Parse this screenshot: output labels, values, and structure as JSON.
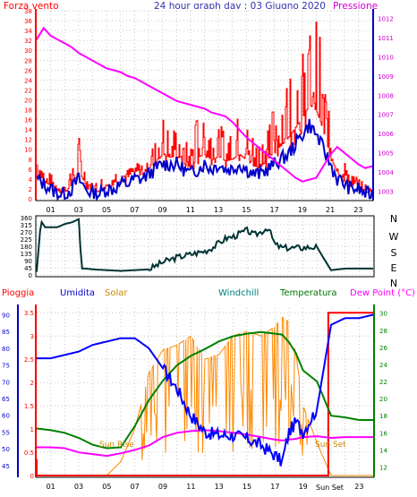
{
  "header": {
    "left_label": "Forza vento",
    "center_title": "24 hour graph day : 03 Giugno 2020",
    "right_label": "Pressione"
  },
  "direction_letters": [
    "N",
    "W",
    "S",
    "E",
    "N"
  ],
  "legend_bottom": {
    "pioggia": "Pioggia",
    "umidita": "Umidita",
    "solar": "Solar",
    "windchill": "Windchill",
    "temperatura": "Temperatura",
    "dew_point": "Dew Point (°C)"
  },
  "annotations": {
    "sun_rise": "Sun Rise",
    "sun_set": "Sun Set",
    "axis_sun_set": "Sun Set"
  },
  "x_ticks": [
    "01",
    "03",
    "05",
    "07",
    "09",
    "11",
    "13",
    "15",
    "17",
    "19",
    "21",
    "23"
  ],
  "x_ticks_bottom": [
    "01",
    "03",
    "05",
    "07",
    "09",
    "11",
    "13",
    "15",
    "17",
    "19",
    "21",
    "23"
  ],
  "colors": {
    "wind": "#ff0000",
    "gust": "#0000cc",
    "pressure": "#ff00ff",
    "direction": "#003333",
    "rain": "#ff0000",
    "humidity": "#0000ff",
    "solar": "#ff8800",
    "windchill": "#008000",
    "temperature": "#007700",
    "dewpoint": "#ff00ff",
    "grid": "#bbbbbb"
  },
  "chart_data": [
    {
      "type": "line",
      "name": "wind",
      "x_ticks": [
        "01",
        "03",
        "05",
        "07",
        "09",
        "11",
        "13",
        "15",
        "17",
        "19",
        "21",
        "23"
      ],
      "y_left_ticks": [
        0,
        2,
        4,
        6,
        8,
        10,
        12,
        14,
        16,
        18,
        20,
        22,
        24,
        26,
        28,
        30,
        32,
        34,
        36,
        38
      ],
      "y_right_ticks": [
        1003,
        1004,
        1005,
        1006,
        1007,
        1008,
        1009,
        1010,
        1011,
        1012
      ],
      "ylim_left": [
        0,
        38
      ],
      "ylim_right": [
        1002.6,
        1012.4
      ],
      "xlim": [
        0,
        24
      ],
      "hours": [
        0,
        0.5,
        1,
        1.5,
        2,
        2.5,
        3,
        3.5,
        4,
        4.5,
        5,
        5.5,
        6,
        6.5,
        7,
        7.5,
        8,
        8.5,
        9,
        9.5,
        10,
        10.5,
        11,
        11.5,
        12,
        12.5,
        13,
        13.5,
        14,
        14.5,
        15,
        15.5,
        16,
        16.5,
        17,
        17.5,
        18,
        18.5,
        19,
        19.5,
        20,
        20.5,
        21,
        21.5,
        22,
        22.5,
        23,
        23.5,
        24
      ],
      "wind_max": [
        9,
        6,
        5,
        4,
        3,
        6,
        13,
        5,
        3,
        4,
        6,
        6,
        6,
        6,
        8,
        8,
        10,
        12,
        17,
        14,
        15,
        12,
        11,
        18,
        17,
        15,
        15,
        14,
        16,
        17,
        15,
        13,
        12,
        16,
        20,
        22,
        26,
        28,
        30,
        35,
        37,
        28,
        14,
        10,
        8,
        6,
        4,
        3,
        2
      ],
      "wind_avg": [
        4,
        3,
        2,
        1,
        1,
        2,
        4,
        2,
        1,
        1,
        2,
        2,
        3,
        3,
        4,
        4,
        5,
        6,
        7,
        7,
        7,
        6,
        5,
        6,
        7,
        6,
        7,
        6,
        6,
        7,
        6,
        5,
        5,
        6,
        7,
        8,
        9,
        11,
        13,
        15,
        13,
        10,
        7,
        4,
        3,
        2,
        2,
        1,
        1
      ],
      "pressure": [
        1010.9,
        1011.5,
        1011.1,
        1010.9,
        1010.7,
        1010.5,
        1010.2,
        1010.0,
        1009.8,
        1009.6,
        1009.4,
        1009.3,
        1009.2,
        1009.0,
        1008.9,
        1008.7,
        1008.5,
        1008.3,
        1008.1,
        1007.9,
        1007.7,
        1007.6,
        1007.5,
        1007.4,
        1007.3,
        1007.1,
        1007.0,
        1006.9,
        1006.6,
        1006.2,
        1005.8,
        1005.5,
        1005.2,
        1004.9,
        1004.6,
        1004.3,
        1004.0,
        1003.7,
        1003.5,
        1003.6,
        1003.7,
        1004.3,
        1004.9,
        1005.3,
        1005.0,
        1004.7,
        1004.4,
        1004.2,
        1004.3
      ]
    },
    {
      "type": "line",
      "name": "wind direction",
      "y_ticks": [
        0,
        45,
        90,
        135,
        180,
        225,
        270,
        315,
        360
      ],
      "ylim": [
        0,
        360
      ],
      "hours": [
        0,
        0.3,
        0.6,
        1,
        1.5,
        2,
        2.5,
        3,
        3.2,
        3.5,
        4,
        5,
        6,
        7,
        8,
        9,
        10,
        11,
        12,
        12.5,
        13,
        13.5,
        14,
        14.5,
        15,
        15.5,
        16,
        16.5,
        17,
        17.5,
        18,
        18.5,
        19,
        19.5,
        20,
        20.5,
        21,
        21.5,
        22,
        23,
        24
      ],
      "values": [
        20,
        340,
        300,
        300,
        300,
        320,
        330,
        350,
        40,
        40,
        35,
        30,
        25,
        30,
        35,
        80,
        110,
        130,
        150,
        170,
        200,
        230,
        240,
        260,
        280,
        250,
        270,
        300,
        190,
        170,
        170,
        170,
        170,
        175,
        175,
        100,
        30,
        35,
        40,
        40,
        40
      ]
    },
    {
      "type": "line",
      "name": "weather",
      "y_left_ticks": [
        0,
        0.5,
        1,
        1.5,
        2,
        2.5,
        3,
        3.5
      ],
      "ylim_left": [
        0,
        3.6
      ],
      "y_humidity_ticks": [
        45,
        50,
        55,
        60,
        65,
        70,
        75,
        80,
        85,
        90
      ],
      "ylim_humidity": [
        42,
        92
      ],
      "y_right_ticks": [
        12,
        14,
        16,
        18,
        20,
        22,
        24,
        26,
        28,
        30
      ],
      "ylim_right": [
        11,
        30.6
      ],
      "hours": [
        0,
        1,
        2,
        3,
        4,
        5,
        6,
        7,
        8,
        9,
        10,
        11,
        12,
        13,
        14,
        15,
        16,
        17,
        17.5,
        18,
        18.5,
        19,
        20,
        21,
        22,
        23,
        24
      ],
      "humidity": [
        77,
        77,
        78,
        79,
        81,
        82,
        83,
        83,
        80,
        74,
        68,
        60,
        55,
        54,
        54,
        53,
        51,
        48,
        46,
        55,
        58,
        55,
        62,
        87,
        89,
        89,
        90
      ],
      "temperature": [
        16.5,
        16.3,
        16.0,
        15.4,
        14.6,
        14.2,
        14.3,
        16.8,
        19.8,
        22.1,
        23.9,
        25.0,
        25.8,
        26.7,
        27.3,
        27.6,
        27.8,
        27.6,
        27.5,
        26.6,
        25.3,
        23.3,
        22.0,
        18.0,
        17.8,
        17.5,
        17.5
      ],
      "dewpoint": [
        14.3,
        14.3,
        14.2,
        13.7,
        13.5,
        13.3,
        13.6,
        14.0,
        14.5,
        15.5,
        16.0,
        16.2,
        16.3,
        16.2,
        16.0,
        15.8,
        15.5,
        15.2,
        15.1,
        15.2,
        15.3,
        15.5,
        15.6,
        15.4,
        15.5,
        15.5,
        15.5
      ],
      "solar": [
        0,
        0,
        0,
        0,
        0,
        0,
        0.3,
        1.0,
        2.2,
        2.7,
        2.8,
        3.0,
        2.5,
        2.6,
        3.0,
        3.1,
        3.0,
        3.2,
        3.4,
        3.3,
        2.6,
        1.5,
        0.7,
        0,
        0,
        0,
        0
      ],
      "rain_cumulative": [
        0.3,
        0,
        0,
        0,
        0,
        0,
        0,
        0,
        0,
        0,
        0,
        0,
        0,
        0,
        0,
        0,
        0,
        0,
        0,
        0,
        0,
        0,
        0,
        3.5,
        3.5,
        3.5,
        3.5
      ]
    }
  ]
}
